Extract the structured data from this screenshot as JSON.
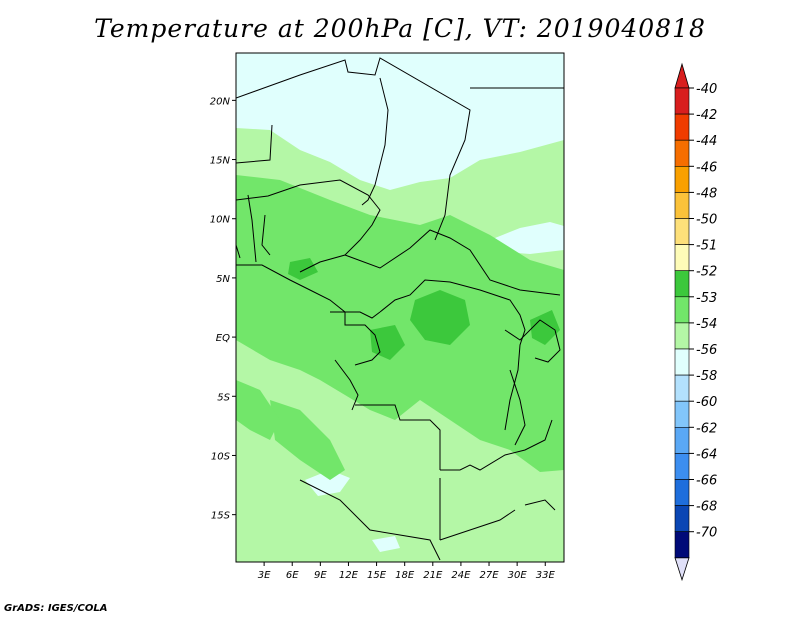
{
  "title": "Temperature at 200hPa [C], VT: 2019040818",
  "credit": "GrADS: IGES/COLA",
  "map": {
    "lat_labels": [
      "20N",
      "15N",
      "10N",
      "5N",
      "EQ",
      "5S",
      "10S",
      "15S"
    ],
    "lon_labels": [
      "3E",
      "6E",
      "9E",
      "12E",
      "15E",
      "18E",
      "21E",
      "24E",
      "27E",
      "30E",
      "33E"
    ],
    "lat_range": [
      -19,
      24
    ],
    "lon_range": [
      0,
      35
    ]
  },
  "legend": {
    "levels": [
      {
        "label": "-40",
        "color": "#d81e1e"
      },
      {
        "label": "-42",
        "color": "#f03c00"
      },
      {
        "label": "-44",
        "color": "#f66e00"
      },
      {
        "label": "-46",
        "color": "#f9a000"
      },
      {
        "label": "-48",
        "color": "#fbc23a"
      },
      {
        "label": "-50",
        "color": "#fde07a"
      },
      {
        "label": "-51",
        "color": "#fefcb8"
      },
      {
        "label": "-52",
        "color": "#3cc83c"
      },
      {
        "label": "-53",
        "color": "#72e66a"
      },
      {
        "label": "-54",
        "color": "#b4f7a6"
      },
      {
        "label": "-56",
        "color": "#e0fffd"
      },
      {
        "label": "-58",
        "color": "#b3e1fd"
      },
      {
        "label": "-60",
        "color": "#82c6fb"
      },
      {
        "label": "-62",
        "color": "#5aa8f5"
      },
      {
        "label": "-64",
        "color": "#3c8ef0"
      },
      {
        "label": "-66",
        "color": "#1e6edc"
      },
      {
        "label": "-68",
        "color": "#0a46b4"
      },
      {
        "label": "-70",
        "color": "#000a78"
      }
    ],
    "top_arrow_color": "#d81e1e",
    "bottom_arrow_color": "#e0e0f8"
  }
}
